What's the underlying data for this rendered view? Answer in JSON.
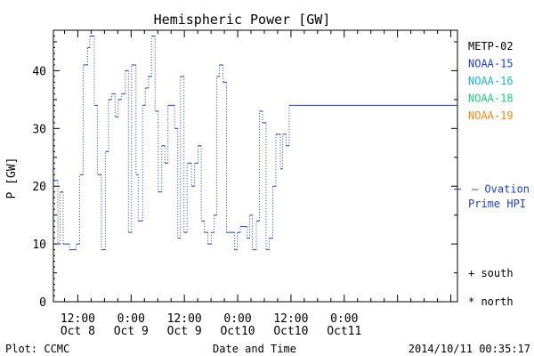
{
  "chart_data": {
    "type": "line",
    "title": "Hemispheric Power [GW]",
    "ylabel": "P [GW]",
    "xlabel": "Date and Time",
    "ylim": [
      0,
      47
    ],
    "xlim_hours": [
      -17.5,
      73.5
    ],
    "yticks": [
      0,
      10,
      20,
      30,
      40
    ],
    "xticks": [
      {
        "hour": -12,
        "time": "12:00",
        "date": "Oct 8"
      },
      {
        "hour": 0,
        "time": "0:00",
        "date": "Oct 9"
      },
      {
        "hour": 12,
        "time": "12:00",
        "date": "Oct 9"
      },
      {
        "hour": 24,
        "time": "0:00",
        "date": "Oct10"
      },
      {
        "hour": 36,
        "time": "12:00",
        "date": "Oct10"
      },
      {
        "hour": 48,
        "time": "0:00",
        "date": "Oct11"
      }
    ],
    "legend": [
      {
        "name": "METP-02",
        "color": "#000000"
      },
      {
        "name": "NOAA-15",
        "color": "#1f3fbf"
      },
      {
        "name": "NOAA-16",
        "color": "#1fb4c8"
      },
      {
        "name": "NOAA-18",
        "color": "#22cc77"
      },
      {
        "name": "NOAA-19",
        "color": "#e88b1a"
      }
    ],
    "ovation_label_1": "– Ovation",
    "ovation_label_2": "Prime HPI",
    "ovation_value": 19.5,
    "marker_south": "+ south",
    "marker_north": "* north",
    "series": [
      {
        "name": "NOAA-15",
        "color": "#1f3fbf",
        "steps": [
          [
            -17.5,
            21
          ],
          [
            -16.5,
            10
          ],
          [
            -16,
            19
          ],
          [
            -15.3,
            10
          ],
          [
            -13.9,
            9
          ],
          [
            -12.4,
            10
          ],
          [
            -11.6,
            22
          ],
          [
            -10.8,
            41
          ],
          [
            -9.8,
            44
          ],
          [
            -9.3,
            46
          ],
          [
            -8.3,
            34
          ],
          [
            -7.6,
            22
          ],
          [
            -6.7,
            9
          ],
          [
            -5.8,
            26
          ],
          [
            -5.1,
            35
          ],
          [
            -4.4,
            36
          ],
          [
            -3.6,
            32
          ],
          [
            -2.9,
            35
          ],
          [
            -2.2,
            36
          ],
          [
            -1.3,
            40
          ],
          [
            -0.6,
            12
          ],
          [
            0.1,
            41
          ],
          [
            1.1,
            22
          ],
          [
            1.6,
            14
          ],
          [
            2.6,
            34
          ],
          [
            3.2,
            37
          ],
          [
            3.9,
            39
          ],
          [
            4.6,
            46
          ],
          [
            5.4,
            33
          ],
          [
            6.1,
            19
          ],
          [
            6.9,
            27
          ],
          [
            7.6,
            24
          ],
          [
            8.3,
            34
          ],
          [
            9.8,
            30
          ],
          [
            10.5,
            11
          ],
          [
            11.1,
            39
          ],
          [
            11.9,
            12
          ],
          [
            12.6,
            24
          ],
          [
            13.6,
            20
          ],
          [
            14.3,
            24
          ],
          [
            15.1,
            27
          ],
          [
            15.8,
            14
          ],
          [
            16.5,
            12
          ],
          [
            17.3,
            10
          ],
          [
            18.1,
            12
          ],
          [
            18.7,
            15
          ],
          [
            19.3,
            39
          ],
          [
            19.9,
            41
          ],
          [
            20.7,
            38
          ],
          [
            21.5,
            12
          ],
          [
            23.3,
            9
          ],
          [
            23.9,
            12
          ],
          [
            24.6,
            13
          ],
          [
            26.1,
            11
          ],
          [
            26.7,
            15
          ],
          [
            27.3,
            9
          ],
          [
            28.2,
            14
          ],
          [
            28.9,
            33
          ],
          [
            29.6,
            31
          ],
          [
            30.4,
            9
          ],
          [
            31.1,
            11
          ],
          [
            31.9,
            20
          ],
          [
            32.6,
            29
          ],
          [
            33.6,
            23
          ],
          [
            34.1,
            29
          ],
          [
            34.9,
            27
          ],
          [
            35.6,
            34
          ],
          [
            35.9,
            34
          ]
        ]
      }
    ]
  },
  "footer": {
    "left": "Plot: CCMC",
    "timestamp": "2014/10/11 00:35:17"
  }
}
